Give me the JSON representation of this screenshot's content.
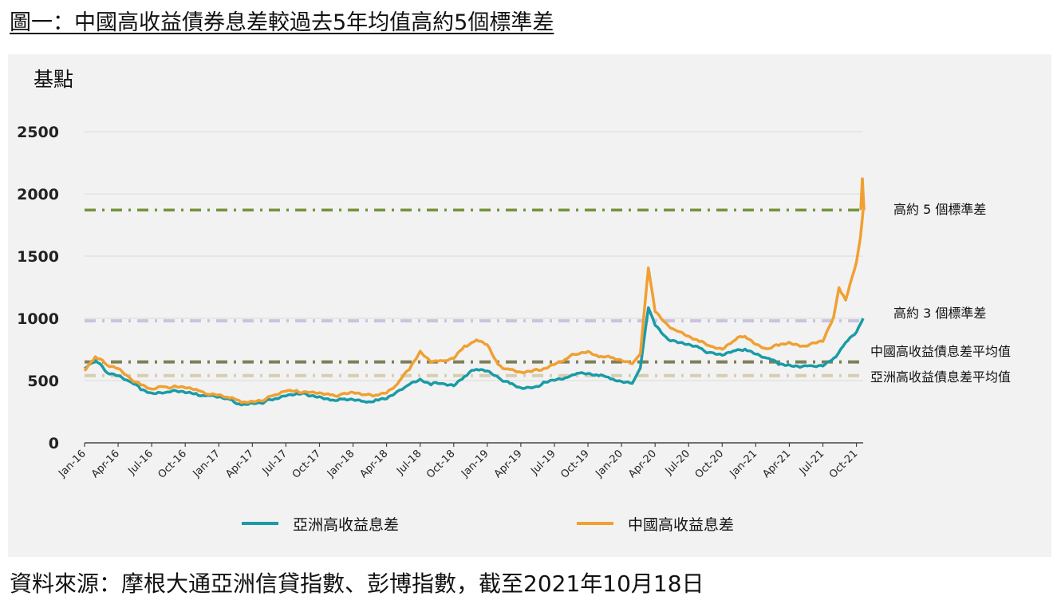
{
  "header": {
    "title": "圖一：中國高收益債券息差較過去5年均值高約5個標準差"
  },
  "footer": {
    "source": "資料來源：摩根大通亞洲信貸指數、彭博指數，截至2021年10月18日"
  },
  "chart_data": {
    "type": "line",
    "title": "圖一：中國高收益債券息差較過去5年均值高約5個標準差",
    "ylabel": "基點",
    "xlabel": "",
    "ylim": [
      0,
      2500
    ],
    "yticks": [
      "0",
      "500",
      "1000",
      "1500",
      "2000",
      "2500"
    ],
    "xticks": [
      "Jan-16",
      "Apr-16",
      "Jul-16",
      "Oct-16",
      "Jan-17",
      "Apr-17",
      "Jul-17",
      "Oct-17",
      "Jan-18",
      "Apr-18",
      "Jul-18",
      "Oct-18",
      "Jan-19",
      "Apr-19",
      "Jul-19",
      "Oct-19",
      "Jan-20",
      "Apr-20",
      "Jul-20",
      "Oct-20",
      "Jan-21",
      "Apr-21",
      "Jul-21",
      "Oct-21"
    ],
    "grid": true,
    "legend_position": "bottom",
    "colors": {
      "asia": "#1a9ba6",
      "china": "#f0a032",
      "plus5sd": "#76923c",
      "plus3sd": "#c9c3e0",
      "china_avg": "#7f7f5a",
      "asia_avg": "#d6ceb0"
    },
    "series": [
      {
        "name": "亞洲高收益息差",
        "key": "asia",
        "x": [
          2016.0,
          2016.08,
          2016.17,
          2016.25,
          2016.33,
          2016.42,
          2016.5,
          2016.58,
          2016.67,
          2016.75,
          2016.83,
          2016.92,
          2017.0,
          2017.08,
          2017.17,
          2017.25,
          2017.33,
          2017.42,
          2017.5,
          2017.58,
          2017.67,
          2017.75,
          2017.83,
          2017.92,
          2018.0,
          2018.08,
          2018.17,
          2018.25,
          2018.33,
          2018.42,
          2018.5,
          2018.58,
          2018.67,
          2018.75,
          2018.83,
          2018.92,
          2019.0,
          2019.08,
          2019.17,
          2019.25,
          2019.33,
          2019.42,
          2019.5,
          2019.58,
          2019.67,
          2019.75,
          2019.83,
          2019.92,
          2020.0,
          2020.08,
          2020.14,
          2020.2,
          2020.25,
          2020.33,
          2020.42,
          2020.5,
          2020.58,
          2020.67,
          2020.75,
          2020.83,
          2020.92,
          2021.0,
          2021.08,
          2021.17,
          2021.25,
          2021.33,
          2021.42,
          2021.5,
          2021.58,
          2021.67,
          2021.75,
          2021.8
        ],
        "values": [
          600,
          660,
          570,
          550,
          500,
          430,
          400,
          410,
          410,
          400,
          390,
          380,
          360,
          340,
          310,
          320,
          320,
          360,
          390,
          400,
          380,
          370,
          350,
          340,
          340,
          330,
          340,
          350,
          400,
          480,
          510,
          470,
          480,
          470,
          540,
          590,
          580,
          530,
          470,
          430,
          440,
          480,
          500,
          510,
          570,
          560,
          540,
          520,
          500,
          490,
          600,
          1080,
          950,
          850,
          800,
          780,
          760,
          720,
          700,
          730,
          760,
          720,
          680,
          640,
          630,
          620,
          610,
          620,
          680,
          800,
          880,
          1000
        ]
      },
      {
        "name": "中國高收益息差",
        "key": "china",
        "x": [
          2016.0,
          2016.08,
          2016.17,
          2016.25,
          2016.33,
          2016.42,
          2016.5,
          2016.58,
          2016.67,
          2016.75,
          2016.83,
          2016.92,
          2017.0,
          2017.08,
          2017.17,
          2017.25,
          2017.33,
          2017.42,
          2017.5,
          2017.58,
          2017.67,
          2017.75,
          2017.83,
          2017.92,
          2018.0,
          2018.08,
          2018.17,
          2018.25,
          2018.33,
          2018.42,
          2018.5,
          2018.58,
          2018.67,
          2018.75,
          2018.83,
          2018.92,
          2019.0,
          2019.08,
          2019.17,
          2019.25,
          2019.33,
          2019.42,
          2019.5,
          2019.58,
          2019.67,
          2019.75,
          2019.83,
          2019.92,
          2020.0,
          2020.08,
          2020.14,
          2020.2,
          2020.25,
          2020.33,
          2020.42,
          2020.5,
          2020.58,
          2020.67,
          2020.75,
          2020.83,
          2020.92,
          2021.0,
          2021.08,
          2021.17,
          2021.25,
          2021.33,
          2021.42,
          2021.5,
          2021.58,
          2021.62,
          2021.67,
          2021.75,
          2021.78,
          2021.8
        ],
        "values": [
          590,
          700,
          620,
          600,
          530,
          460,
          420,
          450,
          450,
          440,
          420,
          400,
          390,
          360,
          330,
          340,
          350,
          380,
          420,
          420,
          400,
          390,
          380,
          390,
          400,
          380,
          390,
          410,
          470,
          600,
          740,
          660,
          650,
          680,
          780,
          820,
          780,
          620,
          590,
          560,
          570,
          600,
          640,
          670,
          720,
          740,
          700,
          680,
          660,
          640,
          700,
          1400,
          1050,
          950,
          900,
          850,
          810,
          780,
          760,
          820,
          860,
          800,
          760,
          780,
          800,
          780,
          790,
          810,
          1000,
          1250,
          1150,
          1450,
          1650,
          1870
        ]
      }
    ],
    "reference_lines": [
      {
        "label": "高約 5 個標準差",
        "value": 1870,
        "key": "plus5sd"
      },
      {
        "label": "高約 3 個標準差",
        "value": 980,
        "key": "plus3sd"
      },
      {
        "label": "中國高收益債息差平均值",
        "value": 650,
        "key": "china_avg"
      },
      {
        "label": "亞洲高收益債息差平均值",
        "value": 540,
        "key": "asia_avg"
      }
    ]
  }
}
